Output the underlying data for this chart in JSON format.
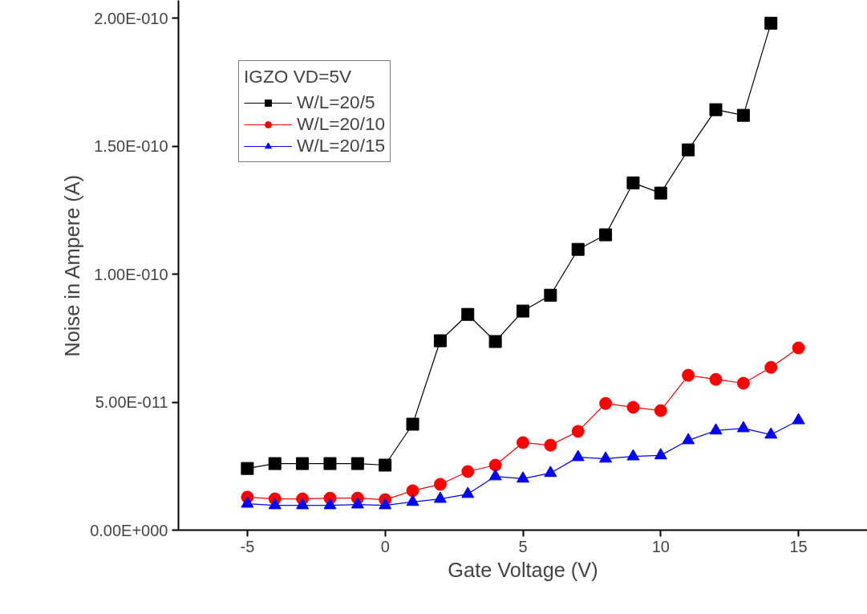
{
  "chart_data": {
    "type": "line",
    "xlabel": "Gate Voltage (V)",
    "ylabel": "Noise in Ampere (A)",
    "legend_title": "IGZO VD=5V",
    "legend": "top left",
    "grid": false,
    "xlim": [
      -7.5,
      17.5
    ],
    "xticks": [
      -5,
      0,
      5,
      10,
      15
    ],
    "ylim": [
      0,
      2.07e-10
    ],
    "yticks": [
      {
        "value": 0,
        "label": "0.00E+000"
      },
      {
        "value": 5e-11,
        "label": "5.00E-011"
      },
      {
        "value": 1e-10,
        "label": "1.00E-010"
      },
      {
        "value": 1.5e-10,
        "label": "1.50E-010"
      },
      {
        "value": 2e-10,
        "label": "2.00E-010"
      }
    ],
    "series": [
      {
        "name": "W/L=20/5",
        "color": "#000000",
        "marker": "square",
        "x": [
          -5,
          -4,
          -3,
          -2,
          -1,
          0,
          1,
          2,
          3,
          4,
          5,
          6,
          7,
          8,
          9,
          10,
          11,
          12,
          13,
          14
        ],
        "values": [
          2.41e-11,
          2.6e-11,
          2.6e-11,
          2.6e-11,
          2.6e-11,
          2.54e-11,
          4.14e-11,
          7.4e-11,
          8.43e-11,
          7.37e-11,
          8.56e-11,
          9.18e-11,
          1.097e-10,
          1.154e-10,
          1.357e-10,
          1.317e-10,
          1.486e-10,
          1.643e-10,
          1.621e-10,
          1.981e-10
        ]
      },
      {
        "name": "W/L=20/10",
        "color": "#ff0000",
        "marker": "circle",
        "x": [
          -5,
          -4,
          -3,
          -2,
          -1,
          0,
          1,
          2,
          3,
          4,
          5,
          6,
          7,
          8,
          9,
          10,
          11,
          12,
          13,
          14,
          15
        ],
        "values": [
          1.29e-11,
          1.22e-11,
          1.22e-11,
          1.25e-11,
          1.25e-11,
          1.19e-11,
          1.54e-11,
          1.79e-11,
          2.29e-11,
          2.54e-11,
          3.42e-11,
          3.32e-11,
          3.86e-11,
          4.95e-11,
          4.8e-11,
          4.67e-11,
          6.05e-11,
          5.89e-11,
          5.74e-11,
          6.36e-11,
          7.12e-11
        ]
      },
      {
        "name": "W/L=20/15",
        "color": "#0000ff",
        "marker": "triangle",
        "x": [
          -5,
          -4,
          -3,
          -2,
          -1,
          0,
          1,
          2,
          3,
          4,
          5,
          6,
          7,
          8,
          9,
          10,
          11,
          12,
          13,
          14,
          15
        ],
        "values": [
          1.03e-11,
          9.7e-12,
          9.7e-12,
          9.7e-12,
          1e-11,
          9.7e-12,
          1.1e-11,
          1.22e-11,
          1.41e-11,
          2.1e-11,
          2.01e-11,
          2.23e-11,
          2.85e-11,
          2.79e-11,
          2.88e-11,
          2.92e-11,
          3.51e-11,
          3.89e-11,
          3.98e-11,
          3.73e-11,
          4.29e-11
        ]
      }
    ]
  }
}
